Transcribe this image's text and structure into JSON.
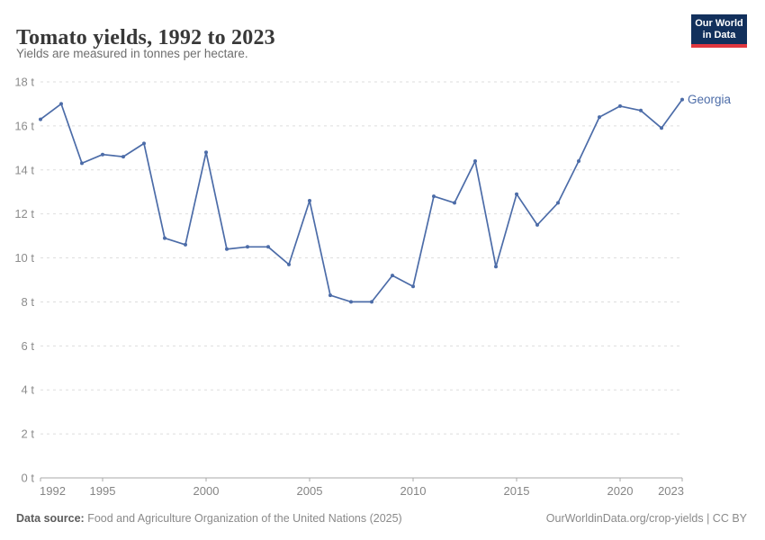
{
  "header": {
    "title": "Tomato yields, 1992 to 2023",
    "subtitle": "Yields are measured in tonnes per hectare.",
    "logo": {
      "line1": "Our World",
      "line2": "in Data",
      "bg_color": "#12305C",
      "accent_color": "#E0373F"
    }
  },
  "chart_data": {
    "type": "line",
    "title": "Tomato yields, 1992 to 2023",
    "subtitle": "Yields are measured in tonnes per hectare.",
    "unit": "tonnes per hectare",
    "ytick_suffix": " t",
    "xlim": [
      1992,
      2023
    ],
    "ylim": [
      0,
      18
    ],
    "grid": "horizontal-dashed",
    "legend_position": "end-of-line-label",
    "xticks": [
      1992,
      1995,
      2000,
      2005,
      2010,
      2015,
      2020,
      2023
    ],
    "yticks": [
      0,
      2,
      4,
      6,
      8,
      10,
      12,
      14,
      16,
      18
    ],
    "x": [
      1992,
      1993,
      1994,
      1995,
      1996,
      1997,
      1998,
      1999,
      2000,
      2001,
      2002,
      2003,
      2004,
      2005,
      2006,
      2007,
      2008,
      2009,
      2010,
      2011,
      2012,
      2013,
      2014,
      2015,
      2016,
      2017,
      2018,
      2019,
      2020,
      2021,
      2022,
      2023
    ],
    "series": [
      {
        "name": "Georgia",
        "color": "#4C6CA8",
        "values": [
          16.3,
          17.0,
          14.3,
          14.7,
          14.6,
          15.2,
          10.9,
          10.6,
          14.8,
          10.4,
          10.5,
          10.5,
          9.7,
          12.6,
          8.3,
          8.0,
          8.0,
          9.2,
          8.7,
          12.8,
          12.5,
          14.4,
          9.6,
          12.9,
          11.5,
          12.5,
          14.4,
          16.4,
          16.9,
          16.7,
          15.9,
          17.2
        ]
      }
    ]
  },
  "footer": {
    "source_label": "Data source:",
    "source_text": " Food and Agriculture Organization of the United Nations (2025)",
    "license_text": "OurWorldinData.org/crop-yields | CC BY"
  }
}
